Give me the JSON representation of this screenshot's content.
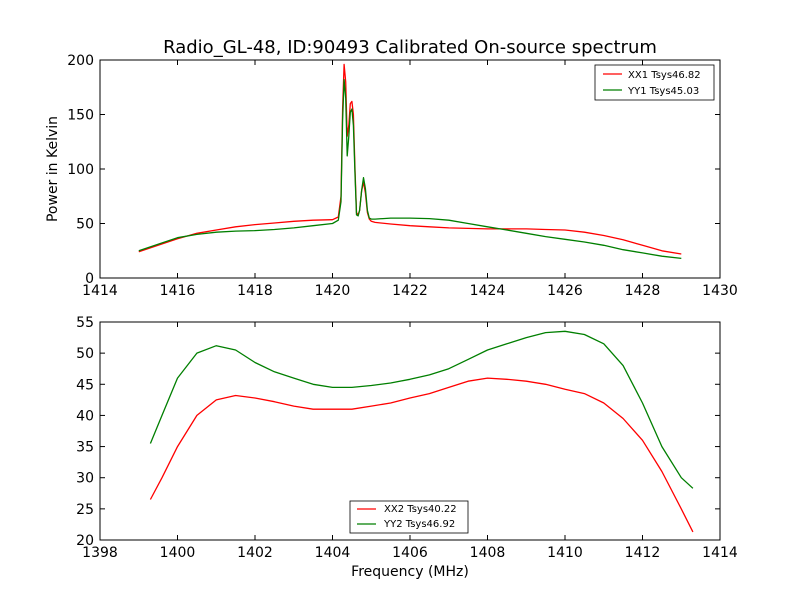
{
  "chart_data": [
    {
      "type": "line",
      "title": "Radio_GL-48, ID:90493 Calibrated On-source spectrum",
      "xlabel": "",
      "ylabel": "Power in Kelvin",
      "xlim": [
        1414,
        1430
      ],
      "ylim": [
        0,
        200
      ],
      "xticks": [
        1414,
        1416,
        1418,
        1420,
        1422,
        1424,
        1426,
        1428,
        1430
      ],
      "yticks": [
        0,
        50,
        100,
        150,
        200
      ],
      "grid": false,
      "legend_position": "top-right",
      "series": [
        {
          "name": "XX1 Tsys46.82",
          "color": "#ff0000",
          "x": [
            1415.0,
            1415.5,
            1416.0,
            1416.5,
            1417.0,
            1417.5,
            1418.0,
            1418.5,
            1419.0,
            1419.5,
            1420.0,
            1420.15,
            1420.22,
            1420.26,
            1420.3,
            1420.34,
            1420.38,
            1420.42,
            1420.46,
            1420.5,
            1420.54,
            1420.58,
            1420.62,
            1420.66,
            1420.7,
            1420.75,
            1420.8,
            1420.85,
            1420.9,
            1420.95,
            1421.0,
            1421.1,
            1421.5,
            1422.0,
            1422.5,
            1423.0,
            1423.5,
            1424.0,
            1424.5,
            1425.0,
            1425.5,
            1426.0,
            1426.5,
            1427.0,
            1427.5,
            1428.0,
            1428.5,
            1429.0
          ],
          "y": [
            24,
            30,
            36,
            41,
            44,
            47,
            49,
            50.5,
            52,
            53,
            53.5,
            56,
            75,
            155,
            196,
            180,
            130,
            140,
            160,
            162,
            150,
            100,
            60,
            58,
            62,
            80,
            88,
            78,
            60,
            54,
            52,
            51,
            49.5,
            48,
            47,
            46,
            45.5,
            45,
            45,
            45,
            44.5,
            44,
            42,
            39,
            35,
            30,
            25,
            22
          ]
        },
        {
          "name": "YY1 Tsys45.03",
          "color": "#007f00",
          "x": [
            1415.0,
            1415.5,
            1416.0,
            1416.5,
            1417.0,
            1417.5,
            1418.0,
            1418.5,
            1419.0,
            1419.5,
            1420.0,
            1420.15,
            1420.22,
            1420.26,
            1420.3,
            1420.34,
            1420.38,
            1420.42,
            1420.46,
            1420.5,
            1420.54,
            1420.58,
            1420.62,
            1420.66,
            1420.7,
            1420.75,
            1420.8,
            1420.85,
            1420.9,
            1420.95,
            1421.0,
            1421.1,
            1421.5,
            1422.0,
            1422.5,
            1423.0,
            1423.5,
            1424.0,
            1424.5,
            1425.0,
            1425.5,
            1426.0,
            1426.5,
            1427.0,
            1427.5,
            1428.0,
            1428.5,
            1429.0
          ],
          "y": [
            25,
            31,
            37,
            40,
            42,
            43,
            43.5,
            44.5,
            46,
            48,
            50,
            53,
            70,
            145,
            182,
            165,
            112,
            130,
            152,
            155,
            140,
            95,
            58,
            57,
            62,
            80,
            92,
            82,
            62,
            55,
            54,
            54,
            55,
            55,
            54.5,
            53,
            50,
            47,
            44,
            41,
            38,
            35.5,
            33,
            30,
            26,
            23,
            20,
            18
          ]
        }
      ]
    },
    {
      "type": "line",
      "title": "",
      "xlabel": "Frequency (MHz)",
      "ylabel": "",
      "xlim": [
        1398,
        1414
      ],
      "ylim": [
        20,
        55
      ],
      "xticks": [
        1398,
        1400,
        1402,
        1404,
        1406,
        1408,
        1410,
        1412,
        1414
      ],
      "yticks": [
        20,
        25,
        30,
        35,
        40,
        45,
        50,
        55
      ],
      "grid": false,
      "legend_position": "bottom-center",
      "series": [
        {
          "name": "XX2 Tsys40.22",
          "color": "#ff0000",
          "x": [
            1399.3,
            1399.6,
            1400.0,
            1400.5,
            1401.0,
            1401.5,
            1402.0,
            1402.5,
            1403.0,
            1403.5,
            1404.0,
            1404.5,
            1405.0,
            1405.5,
            1406.0,
            1406.5,
            1407.0,
            1407.5,
            1408.0,
            1408.5,
            1409.0,
            1409.5,
            1410.0,
            1410.5,
            1411.0,
            1411.5,
            1412.0,
            1412.5,
            1413.0,
            1413.3
          ],
          "y": [
            26.5,
            30,
            35,
            40,
            42.5,
            43.2,
            42.8,
            42.2,
            41.5,
            41,
            41,
            41,
            41.5,
            42,
            42.8,
            43.5,
            44.5,
            45.5,
            46,
            45.8,
            45.5,
            45,
            44.2,
            43.5,
            42,
            39.5,
            36,
            31,
            25,
            21.3
          ]
        },
        {
          "name": "YY2 Tsys46.92",
          "color": "#007f00",
          "x": [
            1399.3,
            1399.6,
            1400.0,
            1400.5,
            1401.0,
            1401.5,
            1402.0,
            1402.5,
            1403.0,
            1403.5,
            1404.0,
            1404.5,
            1405.0,
            1405.5,
            1406.0,
            1406.5,
            1407.0,
            1407.5,
            1408.0,
            1408.5,
            1409.0,
            1409.5,
            1410.0,
            1410.5,
            1411.0,
            1411.5,
            1412.0,
            1412.5,
            1413.0,
            1413.3
          ],
          "y": [
            35.5,
            40,
            46,
            50,
            51.2,
            50.5,
            48.5,
            47,
            46,
            45,
            44.5,
            44.5,
            44.8,
            45.2,
            45.8,
            46.5,
            47.5,
            49,
            50.5,
            51.5,
            52.5,
            53.3,
            53.5,
            53,
            51.5,
            48,
            42,
            35,
            30,
            28.3
          ]
        }
      ]
    }
  ]
}
